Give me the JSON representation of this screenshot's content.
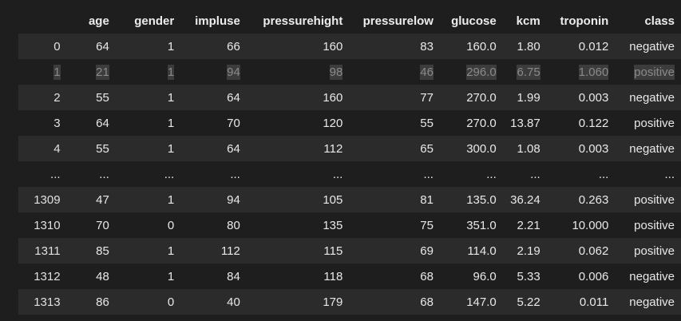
{
  "table": {
    "columns": [
      "",
      "age",
      "gender",
      "impluse",
      "pressurehight",
      "pressurelow",
      "glucose",
      "kcm",
      "troponin",
      "class"
    ],
    "rows": [
      {
        "index": "0",
        "cells": [
          "64",
          "1",
          "66",
          "160",
          "83",
          "160.0",
          "1.80",
          "0.012",
          "negative"
        ]
      },
      {
        "index": "1",
        "cells": [
          "21",
          "1",
          "94",
          "98",
          "46",
          "296.0",
          "6.75",
          "1.060",
          "positive"
        ],
        "selected": true
      },
      {
        "index": "2",
        "cells": [
          "55",
          "1",
          "64",
          "160",
          "77",
          "270.0",
          "1.99",
          "0.003",
          "negative"
        ]
      },
      {
        "index": "3",
        "cells": [
          "64",
          "1",
          "70",
          "120",
          "55",
          "270.0",
          "13.87",
          "0.122",
          "positive"
        ]
      },
      {
        "index": "4",
        "cells": [
          "55",
          "1",
          "64",
          "112",
          "65",
          "300.0",
          "1.08",
          "0.003",
          "negative"
        ]
      },
      {
        "index": "...",
        "cells": [
          "...",
          "...",
          "...",
          "...",
          "...",
          "...",
          "...",
          "...",
          "..."
        ]
      },
      {
        "index": "1309",
        "cells": [
          "47",
          "1",
          "94",
          "105",
          "81",
          "135.0",
          "36.24",
          "0.263",
          "positive"
        ]
      },
      {
        "index": "1310",
        "cells": [
          "70",
          "0",
          "80",
          "135",
          "75",
          "351.0",
          "2.21",
          "10.000",
          "positive"
        ]
      },
      {
        "index": "1311",
        "cells": [
          "85",
          "1",
          "112",
          "115",
          "69",
          "114.0",
          "2.19",
          "0.062",
          "positive"
        ]
      },
      {
        "index": "1312",
        "cells": [
          "48",
          "1",
          "84",
          "118",
          "68",
          "96.0",
          "5.33",
          "0.006",
          "negative"
        ]
      },
      {
        "index": "1313",
        "cells": [
          "86",
          "0",
          "40",
          "179",
          "68",
          "147.0",
          "5.22",
          "0.011",
          "negative"
        ]
      }
    ]
  }
}
